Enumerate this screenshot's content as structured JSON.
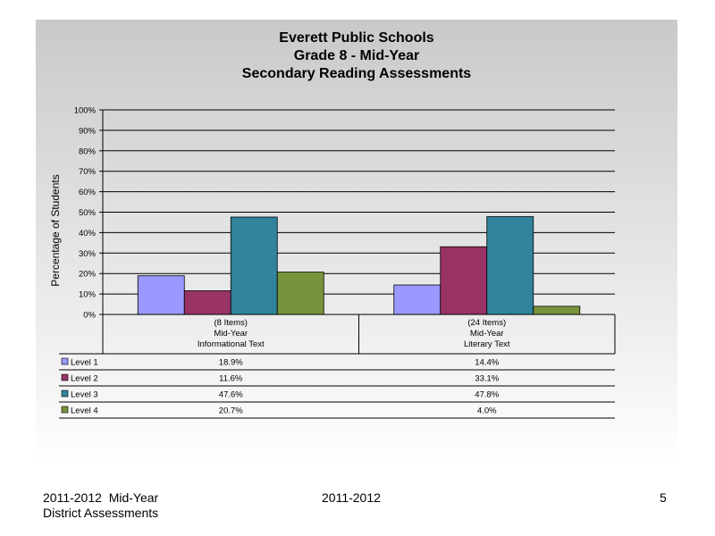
{
  "slide": {
    "footer": {
      "left_line1": "2011-2012  Mid-Year",
      "left_line2": "District Assessments",
      "center": "2011-2012",
      "page_number": "5"
    }
  },
  "chart_data": {
    "type": "bar",
    "title": [
      "Everett Public Schools",
      "Grade 8 - Mid-Year",
      "Secondary Reading Assessments"
    ],
    "ylabel": "Percentage of Students",
    "xlabel": "",
    "ylim": [
      0,
      100
    ],
    "yticks": [
      "0%",
      "10%",
      "20%",
      "30%",
      "40%",
      "50%",
      "60%",
      "70%",
      "80%",
      "90%",
      "100%"
    ],
    "grid": true,
    "categories": [
      [
        "(8 Items)",
        "Mid-Year",
        "Informational Text"
      ],
      [
        "(24 Items)",
        "Mid-Year",
        "Literary Text"
      ]
    ],
    "series": [
      {
        "name": "Level 1",
        "color": "#9999ff",
        "values": [
          18.9,
          14.4
        ],
        "labels": [
          "18.9%",
          "14.4%"
        ]
      },
      {
        "name": "Level 2",
        "color": "#993366",
        "values": [
          11.6,
          33.1
        ],
        "labels": [
          "11.6%",
          "33.1%"
        ]
      },
      {
        "name": "Level 3",
        "color": "#31849b",
        "values": [
          47.6,
          47.8
        ],
        "labels": [
          "47.6%",
          "47.8%"
        ]
      },
      {
        "name": "Level 4",
        "color": "#77933c",
        "values": [
          20.7,
          4.0
        ],
        "labels": [
          "20.7%",
          "4.0%"
        ]
      }
    ],
    "legend": "data-table-below"
  }
}
